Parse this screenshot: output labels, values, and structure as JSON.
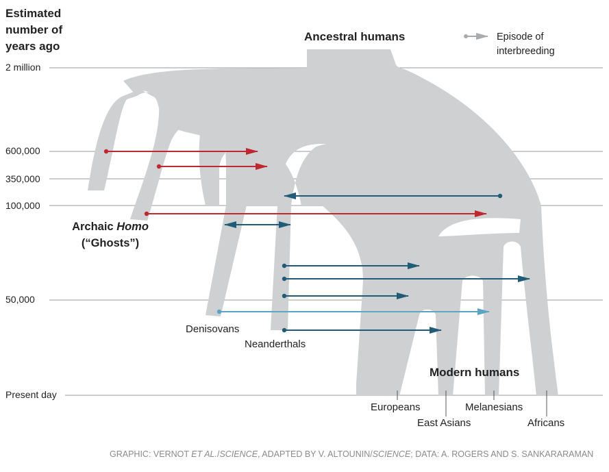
{
  "y_axis_title": "Estimated number of years ago",
  "time_ticks": [
    "2 million",
    "600,000",
    "350,000",
    "100,000",
    "50,000",
    "Present day"
  ],
  "title_top": "Ancestral humans",
  "legend": {
    "label": "Episode of interbreeding"
  },
  "groups": {
    "archaic_line1": "Archaic",
    "archaic_word": "Homo",
    "archaic_line2": "(“Ghosts”)",
    "denisovans": "Denisovans",
    "neanderthals": "Neanderthals",
    "modern_humans": "Modern humans"
  },
  "populations": [
    "Europeans",
    "East Asians",
    "Melanesians",
    "Africans"
  ],
  "credit": {
    "p1": "GRAPHIC: VERNOT ",
    "p2": "ET AL.",
    "p3": "/",
    "p4": "SCIENCE",
    "p5": ", ADAPTED BY V. ALTOUNIN/",
    "p6": "SCIENCE",
    "p7": "; DATA: A. ROGERS AND S. SANKARARAMAN"
  },
  "colors": {
    "lineage": "#cfd0d2",
    "red_arrow": "#c0282f",
    "blue_arrow": "#1f5c78",
    "light_blue_arrow": "#5aa4c4",
    "legend_arrow": "#a9aaac",
    "gridline": "#9a9a9a"
  }
}
